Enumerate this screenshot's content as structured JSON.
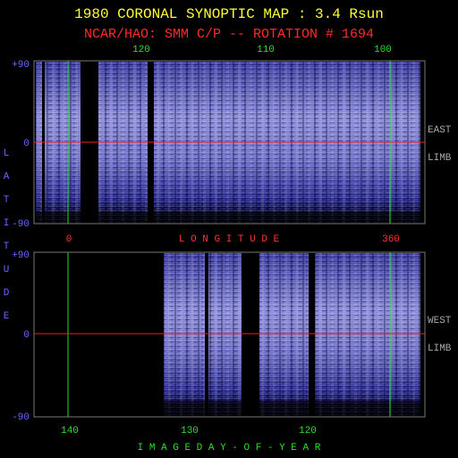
{
  "header": {
    "title": "1980 CORONAL SYNOPTIC MAP : 3.4 Rsun",
    "subtitle": "NCAR/HAO: SMM C/P -- ROTATION # 1694"
  },
  "y_axis_label": "LATITUDE",
  "top_panel": {
    "top_ticks": [
      "120",
      "110",
      "100"
    ],
    "y_ticks": [
      "+90",
      "0",
      "-90"
    ],
    "right_labels": [
      "EAST",
      "LIMB"
    ],
    "bottom_ticks": [
      "0",
      "360"
    ],
    "x_axis_label": "L O N G I T U D E"
  },
  "bottom_panel": {
    "y_ticks": [
      "+90",
      "0",
      "-90"
    ],
    "right_labels": [
      "WEST",
      "LIMB"
    ],
    "bottom_ticks": [
      "140",
      "130",
      "120"
    ],
    "x_axis_label": "I M A G E   D A Y - O F - Y E A R"
  }
}
